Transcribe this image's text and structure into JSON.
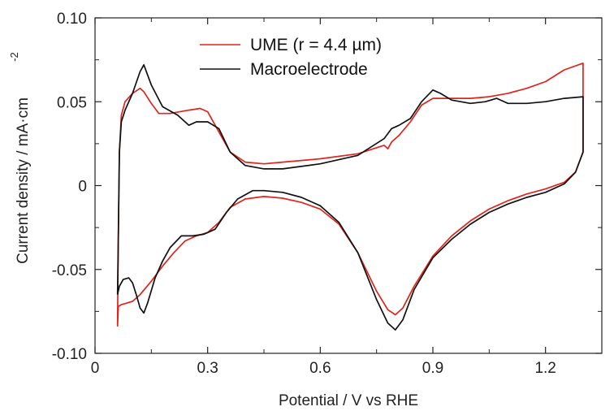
{
  "chart_data": {
    "type": "line",
    "xlabel": "Potential / V vs RHE",
    "ylabel": "Current density / mA·cm",
    "ylabel_superscript": "-2",
    "xlim": [
      0,
      1.35
    ],
    "ylim": [
      -0.1,
      0.1
    ],
    "x_ticks": [
      0,
      0.3,
      0.6,
      0.9,
      1.2
    ],
    "x_tick_labels": [
      "0",
      "0.3",
      "0.6",
      "0.9",
      "1.2"
    ],
    "y_ticks": [
      -0.1,
      -0.05,
      0,
      0.05,
      0.1
    ],
    "y_tick_labels": [
      "-0.10",
      "-0.05",
      "0",
      "0.05",
      "0.10"
    ],
    "grid": false,
    "legend_position": "top-center",
    "series": [
      {
        "name": "UME (r = 4.4 µm)",
        "color": "#e2231a",
        "points": [
          [
            0.06,
            -0.084
          ],
          [
            0.062,
            -0.072
          ],
          [
            0.07,
            -0.071
          ],
          [
            0.085,
            -0.07
          ],
          [
            0.1,
            -0.069
          ],
          [
            0.12,
            -0.065
          ],
          [
            0.15,
            -0.057
          ],
          [
            0.18,
            -0.048
          ],
          [
            0.21,
            -0.04
          ],
          [
            0.24,
            -0.033
          ],
          [
            0.27,
            -0.03
          ],
          [
            0.3,
            -0.028
          ],
          [
            0.33,
            -0.022
          ],
          [
            0.36,
            -0.013
          ],
          [
            0.4,
            -0.008
          ],
          [
            0.45,
            -0.0065
          ],
          [
            0.5,
            -0.0075
          ],
          [
            0.55,
            -0.01
          ],
          [
            0.6,
            -0.014
          ],
          [
            0.65,
            -0.023
          ],
          [
            0.7,
            -0.04
          ],
          [
            0.75,
            -0.063
          ],
          [
            0.78,
            -0.074
          ],
          [
            0.8,
            -0.077
          ],
          [
            0.82,
            -0.073
          ],
          [
            0.85,
            -0.06
          ],
          [
            0.9,
            -0.042
          ],
          [
            0.95,
            -0.03
          ],
          [
            1.0,
            -0.021
          ],
          [
            1.05,
            -0.014
          ],
          [
            1.1,
            -0.009
          ],
          [
            1.15,
            -0.005
          ],
          [
            1.2,
            -0.002
          ],
          [
            1.25,
            0.002
          ],
          [
            1.28,
            0.008
          ],
          [
            1.3,
            0.02
          ],
          [
            1.3,
            0.073
          ],
          [
            1.25,
            0.069
          ],
          [
            1.2,
            0.062
          ],
          [
            1.15,
            0.058
          ],
          [
            1.1,
            0.055
          ],
          [
            1.05,
            0.053
          ],
          [
            1.0,
            0.052
          ],
          [
            0.95,
            0.052
          ],
          [
            0.9,
            0.052
          ],
          [
            0.87,
            0.048
          ],
          [
            0.84,
            0.038
          ],
          [
            0.81,
            0.03
          ],
          [
            0.79,
            0.026
          ],
          [
            0.78,
            0.022
          ],
          [
            0.77,
            0.024
          ],
          [
            0.7,
            0.019
          ],
          [
            0.6,
            0.016
          ],
          [
            0.5,
            0.014
          ],
          [
            0.45,
            0.013
          ],
          [
            0.4,
            0.014
          ],
          [
            0.36,
            0.02
          ],
          [
            0.33,
            0.032
          ],
          [
            0.3,
            0.044
          ],
          [
            0.28,
            0.046
          ],
          [
            0.25,
            0.045
          ],
          [
            0.2,
            0.043
          ],
          [
            0.17,
            0.043
          ],
          [
            0.15,
            0.049
          ],
          [
            0.13,
            0.056
          ],
          [
            0.12,
            0.058
          ],
          [
            0.1,
            0.055
          ],
          [
            0.08,
            0.05
          ],
          [
            0.07,
            0.042
          ],
          [
            0.065,
            0.02
          ],
          [
            0.062,
            -0.03
          ],
          [
            0.06,
            -0.084
          ]
        ]
      },
      {
        "name": "Macroelectrode",
        "color": "#111111",
        "points": [
          [
            0.06,
            -0.065
          ],
          [
            0.065,
            -0.06
          ],
          [
            0.075,
            -0.056
          ],
          [
            0.09,
            -0.055
          ],
          [
            0.1,
            -0.058
          ],
          [
            0.11,
            -0.065
          ],
          [
            0.12,
            -0.073
          ],
          [
            0.13,
            -0.076
          ],
          [
            0.14,
            -0.07
          ],
          [
            0.16,
            -0.055
          ],
          [
            0.18,
            -0.045
          ],
          [
            0.2,
            -0.037
          ],
          [
            0.23,
            -0.03
          ],
          [
            0.26,
            -0.03
          ],
          [
            0.29,
            -0.029
          ],
          [
            0.32,
            -0.026
          ],
          [
            0.35,
            -0.016
          ],
          [
            0.38,
            -0.008
          ],
          [
            0.42,
            -0.003
          ],
          [
            0.45,
            -0.003
          ],
          [
            0.5,
            -0.004
          ],
          [
            0.55,
            -0.007
          ],
          [
            0.6,
            -0.012
          ],
          [
            0.65,
            -0.022
          ],
          [
            0.7,
            -0.04
          ],
          [
            0.75,
            -0.068
          ],
          [
            0.78,
            -0.082
          ],
          [
            0.8,
            -0.086
          ],
          [
            0.82,
            -0.08
          ],
          [
            0.85,
            -0.062
          ],
          [
            0.9,
            -0.043
          ],
          [
            0.95,
            -0.032
          ],
          [
            1.0,
            -0.023
          ],
          [
            1.05,
            -0.016
          ],
          [
            1.1,
            -0.011
          ],
          [
            1.15,
            -0.007
          ],
          [
            1.2,
            -0.004
          ],
          [
            1.25,
            0.001
          ],
          [
            1.28,
            0.008
          ],
          [
            1.3,
            0.02
          ],
          [
            1.3,
            0.053
          ],
          [
            1.25,
            0.052
          ],
          [
            1.2,
            0.05
          ],
          [
            1.15,
            0.049
          ],
          [
            1.1,
            0.049
          ],
          [
            1.07,
            0.052
          ],
          [
            1.04,
            0.05
          ],
          [
            1.0,
            0.049
          ],
          [
            0.95,
            0.051
          ],
          [
            0.92,
            0.055
          ],
          [
            0.9,
            0.057
          ],
          [
            0.87,
            0.05
          ],
          [
            0.84,
            0.04
          ],
          [
            0.81,
            0.036
          ],
          [
            0.79,
            0.034
          ],
          [
            0.77,
            0.028
          ],
          [
            0.7,
            0.018
          ],
          [
            0.6,
            0.013
          ],
          [
            0.5,
            0.01
          ],
          [
            0.45,
            0.01
          ],
          [
            0.4,
            0.012
          ],
          [
            0.36,
            0.02
          ],
          [
            0.33,
            0.034
          ],
          [
            0.3,
            0.038
          ],
          [
            0.27,
            0.038
          ],
          [
            0.25,
            0.036
          ],
          [
            0.22,
            0.042
          ],
          [
            0.18,
            0.047
          ],
          [
            0.15,
            0.06
          ],
          [
            0.13,
            0.072
          ],
          [
            0.12,
            0.068
          ],
          [
            0.1,
            0.055
          ],
          [
            0.08,
            0.045
          ],
          [
            0.07,
            0.038
          ],
          [
            0.065,
            0.02
          ],
          [
            0.062,
            -0.03
          ],
          [
            0.06,
            -0.065
          ]
        ]
      }
    ]
  }
}
